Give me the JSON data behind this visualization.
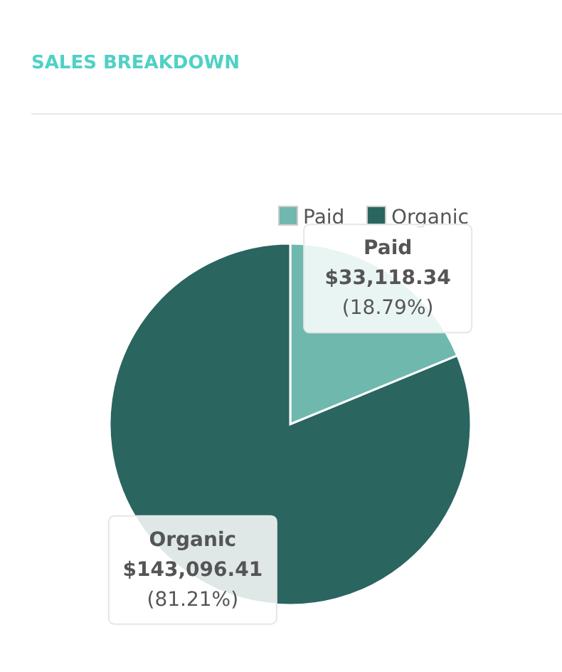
{
  "chart_data": {
    "type": "pie",
    "title": "SALES BREAKDOWN",
    "categories": [
      "Paid",
      "Organic"
    ],
    "values": [
      33118.34,
      143096.41
    ],
    "colors": [
      "#6fb8ad",
      "#2a6560"
    ],
    "value_labels": [
      "$33,118.34\n(18.79%)",
      "$143,096.41\n(81.21%)"
    ],
    "legend": "top right"
  }
}
